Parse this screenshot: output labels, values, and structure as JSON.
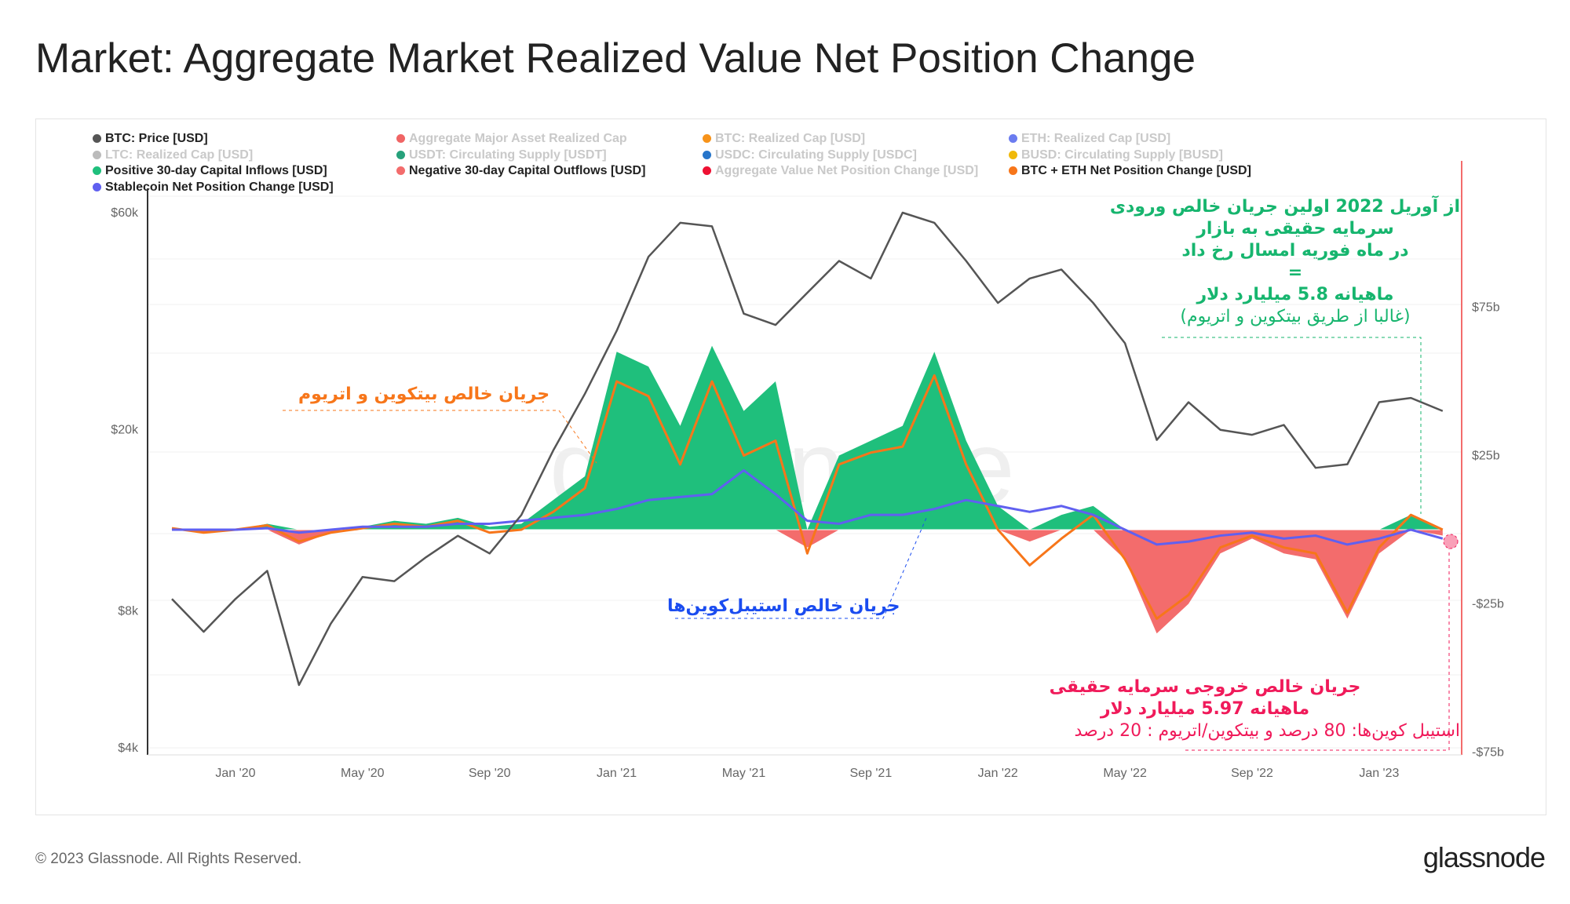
{
  "title": "Market: Aggregate Market Realized Value Net Position Change",
  "footer": "© 2023 Glassnode. All Rights Reserved.",
  "logo": "glassnode",
  "legend": [
    {
      "label": "BTC: Price [USD]",
      "color": "#555555",
      "active": true
    },
    {
      "label": "Aggregate Major Asset Realized Cap",
      "color": "#f06565",
      "active": false
    },
    {
      "label": "BTC: Realized Cap [USD]",
      "color": "#f7931a",
      "active": false
    },
    {
      "label": "ETH: Realized Cap [USD]",
      "color": "#6b7cf0",
      "active": false
    },
    {
      "label": "LTC: Realized Cap [USD]",
      "color": "#bbbbbb",
      "active": false
    },
    {
      "label": "USDT: Circulating Supply [USDT]",
      "color": "#26a17b",
      "active": false
    },
    {
      "label": "USDC: Circulating Supply [USDC]",
      "color": "#2775ca",
      "active": false
    },
    {
      "label": "BUSD: Circulating Supply [BUSD]",
      "color": "#f0b90b",
      "active": false
    },
    {
      "label": "Positive 30-day Capital Inflows [USD]",
      "color": "#1fbf7c",
      "active": true
    },
    {
      "label": "Negative 30-day Capital Outflows [USD]",
      "color": "#f36c6c",
      "active": true
    },
    {
      "label": "Aggregate Value Net Position Change [USD]",
      "color": "#ee1133",
      "active": false
    },
    {
      "label": "BTC + ETH Net Position Change [USD]",
      "color": "#f7761a",
      "active": true
    },
    {
      "label": "Stablecoin Net Position Change [USD]",
      "color": "#6060f0",
      "active": true
    }
  ],
  "annotations": {
    "inflow_title": [
      "از آوریل 2022 اولین جریان خالص ورودی",
      "سرمایه حقیقی به بازار",
      "در ماه فوریه امسال رخ داد",
      "=",
      "ماهیانه 5.8 میلیارد دلار"
    ],
    "inflow_note": "(غالبا از طریق بیتکوین و اتریوم)",
    "btc_eth_label": "جریان خالص بیتکوین و اتریوم",
    "stable_label": "جریان خالص استیبل‌کوین‌ها",
    "outflow_title": [
      "جریان خالص خروجی سرمایه حقیقی",
      "ماهیانه  5.97 میلیارد دلار"
    ],
    "outflow_note": "استیبل کوین‌ها: 80 درصد و بیتکوین/اتریوم : 20 درصد"
  },
  "watermark": "glassnode",
  "chart_data": {
    "type": "line",
    "title": "Market: Aggregate Market Realized Value Net Position Change",
    "x": [
      "Nov '19",
      "Dec '19",
      "Jan '20",
      "Feb '20",
      "Mar '20",
      "Apr '20",
      "May '20",
      "Jun '20",
      "Jul '20",
      "Aug '20",
      "Sep '20",
      "Oct '20",
      "Nov '20",
      "Dec '20",
      "Jan '21",
      "Feb '21",
      "Mar '21",
      "Apr '21",
      "May '21",
      "Jun '21",
      "Jul '21",
      "Aug '21",
      "Sep '21",
      "Oct '21",
      "Nov '21",
      "Dec '21",
      "Jan '22",
      "Feb '22",
      "Mar '22",
      "Apr '22",
      "May '22",
      "Jun '22",
      "Jul '22",
      "Aug '22",
      "Sep '22",
      "Oct '22",
      "Nov '22",
      "Dec '22",
      "Jan '23",
      "Feb '23",
      "Mar '23"
    ],
    "x_ticks": [
      "Jan '20",
      "May '20",
      "Sep '20",
      "Jan '21",
      "May '21",
      "Sep '21",
      "Jan '22",
      "May '22",
      "Sep '22",
      "Jan '23"
    ],
    "y_left": {
      "scale": "log",
      "ticks": [
        "$4k",
        "$8k",
        "$20k",
        "$60k"
      ],
      "tick_values": [
        4000,
        8000,
        20000,
        60000
      ]
    },
    "y_right": {
      "ticks": [
        "-$75b",
        "-$25b",
        "$25b",
        "$75b"
      ],
      "tick_values": [
        -75,
        -25,
        25,
        75
      ],
      "unit": "billion USD"
    },
    "series": [
      {
        "name": "BTC: Price [USD]",
        "axis": "left",
        "values": [
          8500,
          7200,
          8500,
          9800,
          5500,
          7500,
          9500,
          9300,
          10500,
          11700,
          10700,
          13000,
          18000,
          24000,
          33000,
          48000,
          57000,
          56000,
          36000,
          34000,
          40000,
          47000,
          43000,
          60000,
          57000,
          47000,
          38000,
          43000,
          45000,
          38000,
          31000,
          19000,
          23000,
          20000,
          19500,
          20500,
          16500,
          16800,
          23000,
          23500,
          22000
        ]
      },
      {
        "name": "Aggregate Net Position Change (area)",
        "axis": "right",
        "values": [
          0.5,
          -1,
          0,
          2,
          -5,
          -1,
          1,
          3,
          2,
          4,
          1,
          2,
          10,
          18,
          60,
          55,
          35,
          62,
          40,
          50,
          -6,
          25,
          30,
          35,
          60,
          30,
          8,
          -4,
          5,
          8,
          -10,
          -35,
          -25,
          -8,
          -3,
          -8,
          -10,
          -30,
          -8,
          5,
          -2
        ]
      },
      {
        "name": "BTC + ETH Net Position Change [USD]",
        "axis": "right",
        "values": [
          0.5,
          -1,
          0,
          1.5,
          -4,
          -1,
          0.5,
          2,
          1,
          3,
          -1,
          0,
          6,
          14,
          50,
          45,
          22,
          50,
          25,
          30,
          -8,
          22,
          26,
          28,
          52,
          22,
          0,
          -12,
          -3,
          5,
          -10,
          -30,
          -22,
          -6,
          -2,
          -6,
          -8,
          -28,
          -6,
          5,
          0
        ]
      },
      {
        "name": "Stablecoin Net Position Change [USD]",
        "axis": "right",
        "values": [
          0,
          0,
          0,
          0.5,
          -1,
          0,
          1,
          1,
          1,
          2,
          2,
          3,
          4,
          5,
          7,
          10,
          11,
          12,
          20,
          12,
          3,
          2,
          5,
          5,
          7,
          10,
          8,
          6,
          8,
          5,
          0,
          -5,
          -4,
          -2,
          -1,
          -3,
          -2,
          -5,
          -3,
          0,
          -3
        ]
      }
    ]
  }
}
